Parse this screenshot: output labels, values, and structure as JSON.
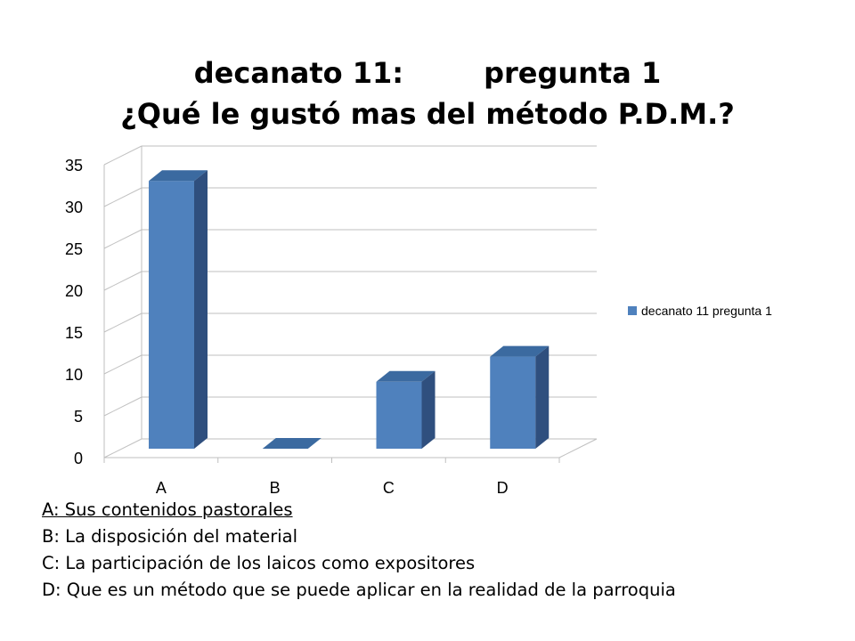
{
  "slide": {
    "title_part1": "decanato 11:",
    "title_part2": "pregunta 1",
    "title_line2": "¿Qué le gustó mas del método P.D.M.?"
  },
  "chart_data": {
    "type": "bar",
    "style": "3d-column",
    "categories": [
      "A",
      "B",
      "C",
      "D"
    ],
    "series": [
      {
        "name": "decanato 11 pregunta 1",
        "values": [
          32,
          0,
          8,
          11
        ],
        "color": "#4F81BD"
      }
    ],
    "ylim": [
      0,
      35
    ],
    "yticks": [
      0,
      5,
      10,
      15,
      20,
      25,
      30,
      35
    ],
    "grid": true,
    "legend": "right",
    "title": "",
    "xlabel": "",
    "ylabel": ""
  },
  "captions": [
    "A: Sus contenidos pastorales",
    "B: La disposición del material",
    "C: La participación de los laicos como expositores",
    "D: Que es un método que se puede aplicar en la realidad de la parroquia"
  ]
}
